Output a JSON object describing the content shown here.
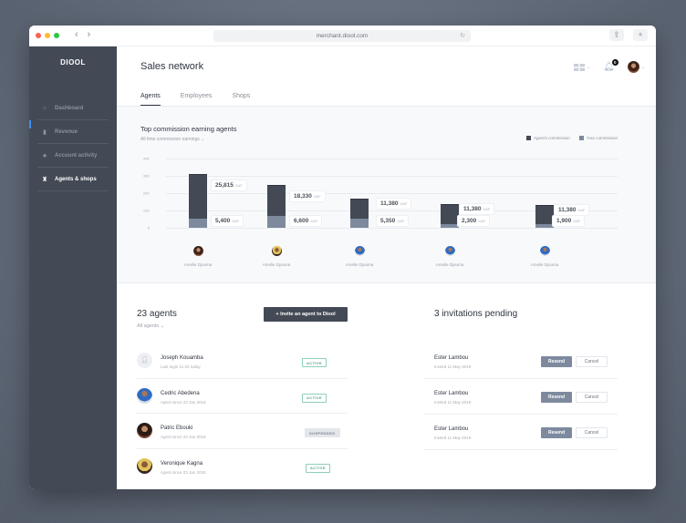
{
  "browser": {
    "url": "merchant.diool.com",
    "back_icon": "chevron-left-icon",
    "forward_icon": "chevron-right-icon",
    "share_icon": "share-icon",
    "new_tab_icon": "plus-icon",
    "reload_icon": "reload-icon"
  },
  "sidebar": {
    "logo": "DIOOL",
    "items": [
      {
        "label": "Dashboard",
        "icon": "home-icon",
        "glyph": "⌂",
        "active": false
      },
      {
        "label": "Revenue",
        "icon": "bar-chart-icon",
        "glyph": "▮",
        "active": false
      },
      {
        "label": "Account activity",
        "icon": "star-icon",
        "glyph": "★",
        "active": false
      },
      {
        "label": "Agents & shops",
        "icon": "android-icon",
        "glyph": "♜",
        "active": true
      }
    ]
  },
  "header": {
    "title": "Sales network",
    "tabs": [
      {
        "label": "Agents",
        "active": true
      },
      {
        "label": "Employees",
        "active": false
      },
      {
        "label": "Shops",
        "active": false
      }
    ],
    "notification_count": "0",
    "language_icon": "uk-flag-icon",
    "caret": "⌄"
  },
  "chart_section": {
    "title": "Top commission earning agents",
    "filter": "All time commission earnings  ⌄",
    "legend": [
      {
        "label": "Agent's commission",
        "color": "#434a55"
      },
      {
        "label": "Your commission",
        "color": "#7d8a9e"
      }
    ],
    "currency": "XAF"
  },
  "chart_data": {
    "type": "bar",
    "stacked": true,
    "title": "Top commission earning agents",
    "subtitle": "All time commission earnings",
    "categories": [
      "Amelie Djouma",
      "Amelie Djouma",
      "Amelie Djouma",
      "Amelie Djouma",
      "Amelie Djouma"
    ],
    "series": [
      {
        "name": "Your commission",
        "color": "#7d8a9e",
        "values": [
          5400,
          6600,
          5350,
          2300,
          1900
        ],
        "labels": [
          "5,400",
          "6,600",
          "5,350",
          "2,300",
          "1,900"
        ]
      },
      {
        "name": "Agent's commission",
        "color": "#434a55",
        "values": [
          25815,
          18330,
          11380,
          11380,
          11380
        ],
        "labels": [
          "25,815",
          "18,330",
          "11,380",
          "11,380",
          "11,380"
        ]
      }
    ],
    "yticks": [
      "0",
      "10K",
      "20K",
      "30K",
      "40K"
    ],
    "ylim": [
      0,
      40000
    ],
    "unit": "XAF",
    "grid": true,
    "legend_position": "top-right"
  },
  "agents": {
    "title": "23 agents",
    "filter": "All agents  ⌄",
    "invite_button": "+  Invite an agent to Diool",
    "list": [
      {
        "name": "Joseph Kouamba",
        "sub": "Last login 11:32 today",
        "status": "ACTIVE",
        "status_type": "active",
        "avatar": "placeholder"
      },
      {
        "name": "Cedric Abedena",
        "sub": "Agent since 23 Jan 2018",
        "status": "ACTIVE",
        "status_type": "active",
        "avatar": "av-c"
      },
      {
        "name": "Patric Ebouki",
        "sub": "Agent since 23 Jan 2018",
        "status": "SUSPENDED",
        "status_type": "suspended",
        "avatar": "av-d"
      },
      {
        "name": "Veronique Kagna",
        "sub": "Agent since 23 Jan 2018",
        "status": "ACTIVE",
        "status_type": "active",
        "avatar": "av-b"
      }
    ]
  },
  "invitations": {
    "title": "3 invitations pending",
    "list": [
      {
        "name": "Ester Lambou",
        "sub": "Invited 11 May 2019",
        "resend": "Resend",
        "cancel": "Cancel"
      },
      {
        "name": "Ester Lambou",
        "sub": "Invited 11 May 2019",
        "resend": "Resend",
        "cancel": "Cancel"
      },
      {
        "name": "Ester Lambou",
        "sub": "Invited 11 May 2019",
        "resend": "Resend",
        "cancel": "Cancel"
      }
    ]
  }
}
